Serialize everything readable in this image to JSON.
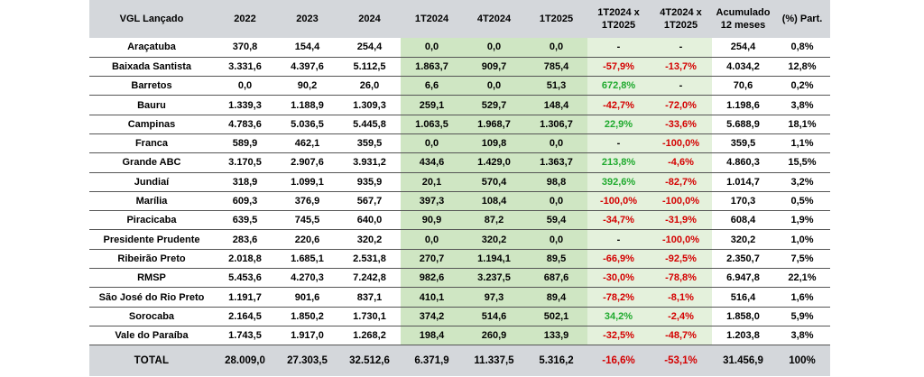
{
  "headers": [
    "VGL Lançado",
    "2022",
    "2023",
    "2024",
    "1T2024",
    "4T2024",
    "1T2025",
    "1T2024 x\n1T2025",
    "4T2024 x\n1T2025",
    "Acumulado\n12 meses",
    "(%) Part."
  ],
  "header_lines": [
    [
      "VGL Lançado"
    ],
    [
      "2022"
    ],
    [
      "2023"
    ],
    [
      "2024"
    ],
    [
      "1T2024"
    ],
    [
      "4T2024"
    ],
    [
      "1T2025"
    ],
    [
      "1T2024 x",
      "1T2025"
    ],
    [
      "4T2024 x",
      "1T2025"
    ],
    [
      "Acumulado",
      "12 meses"
    ],
    [
      "(%) Part."
    ]
  ],
  "rows": [
    [
      "Araçatuba",
      "370,8",
      "154,4",
      "254,4",
      "0,0",
      "0,0",
      "0,0",
      "-",
      "-",
      "254,4",
      "0,8%"
    ],
    [
      "Baixada Santista",
      "3.331,6",
      "4.397,6",
      "5.112,5",
      "1.863,7",
      "909,7",
      "785,4",
      "-57,9%",
      "-13,7%",
      "4.034,2",
      "12,8%"
    ],
    [
      "Barretos",
      "0,0",
      "90,2",
      "26,0",
      "6,6",
      "0,0",
      "51,3",
      "672,8%",
      "-",
      "70,6",
      "0,2%"
    ],
    [
      "Bauru",
      "1.339,3",
      "1.188,9",
      "1.309,3",
      "259,1",
      "529,7",
      "148,4",
      "-42,7%",
      "-72,0%",
      "1.198,6",
      "3,8%"
    ],
    [
      "Campinas",
      "4.783,6",
      "5.036,5",
      "5.445,8",
      "1.063,5",
      "1.968,7",
      "1.306,7",
      "22,9%",
      "-33,6%",
      "5.688,9",
      "18,1%"
    ],
    [
      "Franca",
      "589,9",
      "462,1",
      "359,5",
      "0,0",
      "109,8",
      "0,0",
      "-",
      "-100,0%",
      "359,5",
      "1,1%"
    ],
    [
      "Grande ABC",
      "3.170,5",
      "2.907,6",
      "3.931,2",
      "434,6",
      "1.429,0",
      "1.363,7",
      "213,8%",
      "-4,6%",
      "4.860,3",
      "15,5%"
    ],
    [
      "Jundiaí",
      "318,9",
      "1.099,1",
      "935,9",
      "20,1",
      "570,4",
      "98,8",
      "392,6%",
      "-82,7%",
      "1.014,7",
      "3,2%"
    ],
    [
      "Marília",
      "609,3",
      "376,9",
      "567,7",
      "397,3",
      "108,4",
      "0,0",
      "-100,0%",
      "-100,0%",
      "170,3",
      "0,5%"
    ],
    [
      "Piracicaba",
      "639,5",
      "745,5",
      "640,0",
      "90,9",
      "87,2",
      "59,4",
      "-34,7%",
      "-31,9%",
      "608,4",
      "1,9%"
    ],
    [
      "Presidente Prudente",
      "283,6",
      "220,6",
      "320,2",
      "0,0",
      "320,2",
      "0,0",
      "-",
      "-100,0%",
      "320,2",
      "1,0%"
    ],
    [
      "Ribeirão Preto",
      "2.018,8",
      "1.685,1",
      "2.531,8",
      "270,7",
      "1.194,1",
      "89,5",
      "-66,9%",
      "-92,5%",
      "2.350,7",
      "7,5%"
    ],
    [
      "RMSP",
      "5.453,6",
      "4.270,3",
      "7.242,8",
      "982,6",
      "3.237,5",
      "687,6",
      "-30,0%",
      "-78,8%",
      "6.947,8",
      "22,1%"
    ],
    [
      "São José do Rio Preto",
      "1.191,7",
      "901,6",
      "837,1",
      "410,1",
      "97,3",
      "89,4",
      "-78,2%",
      "-8,1%",
      "516,4",
      "1,6%"
    ],
    [
      "Sorocaba",
      "2.164,5",
      "1.850,2",
      "1.730,1",
      "374,2",
      "514,6",
      "502,1",
      "34,2%",
      "-2,4%",
      "1.858,0",
      "5,9%"
    ],
    [
      "Vale do Paraíba",
      "1.743,5",
      "1.917,0",
      "1.268,2",
      "198,4",
      "260,9",
      "133,9",
      "-32,5%",
      "-48,7%",
      "1.203,8",
      "3,8%"
    ]
  ],
  "total": [
    "TOTAL",
    "28.009,0",
    "27.303,5",
    "32.512,6",
    "6.371,9",
    "11.337,5",
    "5.316,2",
    "-16,6%",
    "-53,1%",
    "31.456,9",
    "100%"
  ],
  "colors": {
    "header_bg": "#d4d7db",
    "quarter_highlight": "#cfe6c3",
    "variation_highlight": "#e4f1dc",
    "negative": "#d40000",
    "positive": "#1faa2e"
  }
}
